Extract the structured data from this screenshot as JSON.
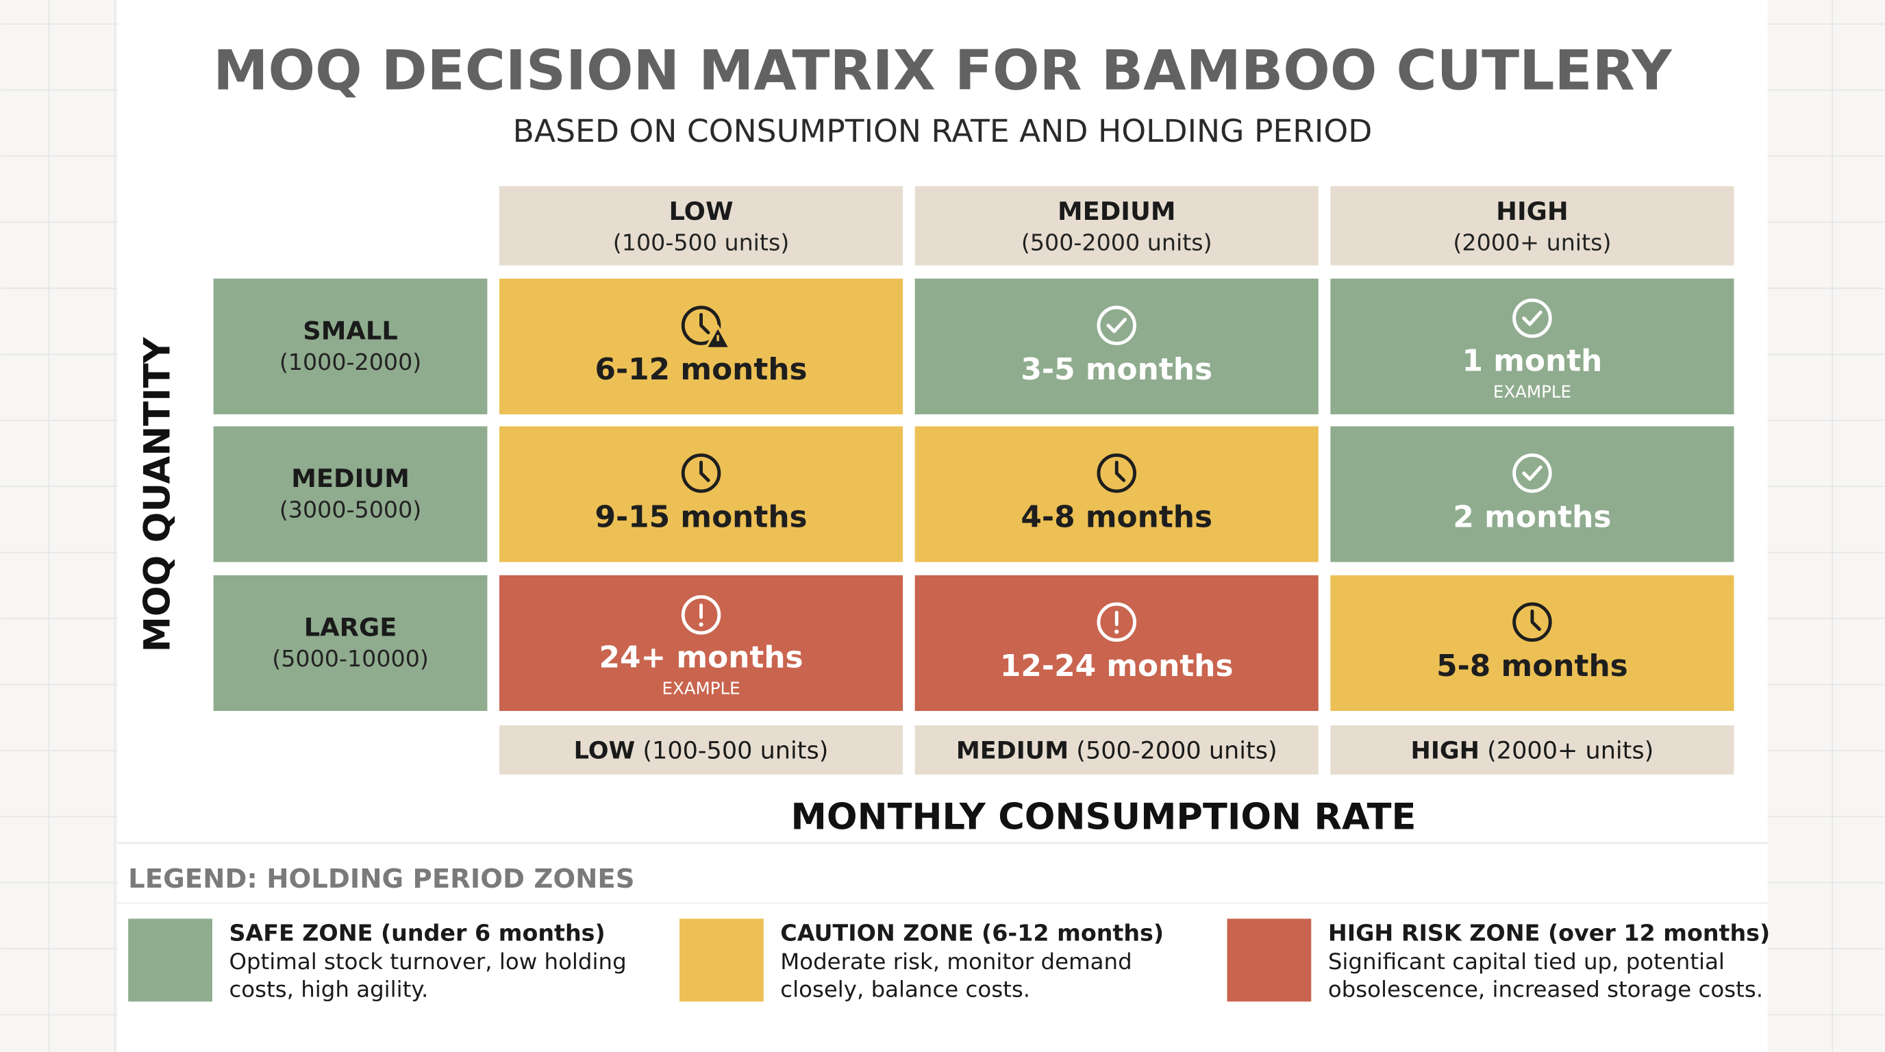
{
  "header": {
    "title": "MOQ DECISION MATRIX FOR BAMBOO CUTLERY",
    "subtitle": "BASED ON CONSUMPTION RATE AND HOLDING PERIOD"
  },
  "matrix": {
    "y_axis_label": "MOQ QUANTITY",
    "x_axis_label": "MONTHLY CONSUMPTION RATE",
    "columns": [
      {
        "name": "LOW",
        "range": "(100-500 units)"
      },
      {
        "name": "MEDIUM",
        "range": "(500-2000 units)"
      },
      {
        "name": "HIGH",
        "range": "(2000+ units)"
      }
    ],
    "rows": [
      {
        "name": "SMALL",
        "range": "(1000-2000)"
      },
      {
        "name": "MEDIUM",
        "range": "(3000-5000)"
      },
      {
        "name": "LARGE",
        "range": "(5000-10000)"
      }
    ],
    "cells": [
      [
        {
          "period": "6-12 months",
          "zone": 1,
          "icon": "clock-warning"
        },
        {
          "period": "3-5 months",
          "zone": 0,
          "icon": "check"
        },
        {
          "period": "1 month",
          "note": "EXAMPLE",
          "zone": 0,
          "icon": "check"
        }
      ],
      [
        {
          "period": "9-15 months",
          "zone": 1,
          "icon": "clock"
        },
        {
          "period": "4-8 months",
          "zone": 1,
          "icon": "clock"
        },
        {
          "period": "2 months",
          "zone": 0,
          "icon": "check"
        }
      ],
      [
        {
          "period": "24+ months",
          "note": "EXAMPLE",
          "zone": 2,
          "icon": "alert"
        },
        {
          "period": "12-24 months",
          "zone": 2,
          "icon": "alert"
        },
        {
          "period": "5-8 months",
          "zone": 1,
          "icon": "clock"
        }
      ]
    ]
  },
  "legend": {
    "title": "LEGEND: HOLDING PERIOD ZONES",
    "zones": [
      {
        "title": "SAFE ZONE (under 6 months)",
        "color": "#8fac8e",
        "text_color": "#ffffff",
        "description": [
          "Optimal stock turnover, low holding",
          "costs, high agility."
        ]
      },
      {
        "title": "CAUTION ZONE (6-12 months)",
        "color": "#ecc055",
        "text_color": "#1e1e1e",
        "description": [
          "Moderate risk, monitor demand",
          "closely, balance costs."
        ]
      },
      {
        "title": "HIGH RISK ZONE (over 12 months)",
        "color": "#c9644e",
        "text_color": "#ffffff",
        "description": [
          "Significant capital tied up, potential",
          "obsolescence, increased storage costs."
        ]
      }
    ]
  }
}
